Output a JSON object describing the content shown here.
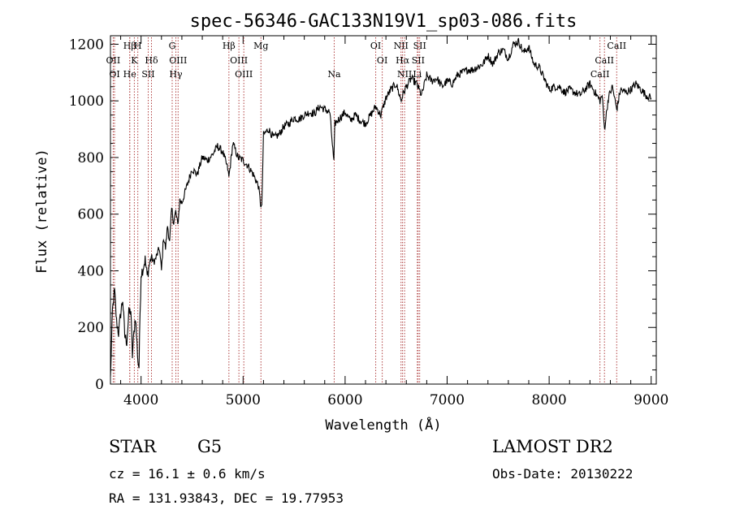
{
  "chart_data": {
    "type": "line",
    "title": "spec-56346-GAC133N19V1_sp03-086.fits",
    "xlabel": "Wavelength (Å)",
    "ylabel": "Flux (relative)",
    "xlim": [
      3700,
      9050
    ],
    "ylim": [
      0,
      1230
    ],
    "x_ticks": [
      4000,
      5000,
      6000,
      7000,
      8000,
      9000
    ],
    "y_ticks": [
      0,
      200,
      400,
      600,
      800,
      1000,
      1200
    ],
    "grid": false,
    "line_color": "#000000",
    "marker_color": "#b04040",
    "series": [
      {
        "x": [
          3700,
          3720,
          3740,
          3760,
          3780,
          3800,
          3820,
          3840,
          3860,
          3880,
          3900,
          3915,
          3930,
          3945,
          3960,
          3970,
          3980,
          3990,
          4000,
          4020,
          4040,
          4060,
          4080,
          4100,
          4120,
          4140,
          4160,
          4180,
          4200,
          4220,
          4240,
          4260,
          4280,
          4300,
          4320,
          4340,
          4360,
          4380,
          4400,
          4450,
          4500,
          4550,
          4600,
          4650,
          4700,
          4750,
          4800,
          4850,
          4861,
          4900,
          4950,
          5000,
          5050,
          5100,
          5150,
          5170,
          5183,
          5200,
          5250,
          5300,
          5350,
          5400,
          5450,
          5500,
          5550,
          5600,
          5650,
          5700,
          5750,
          5800,
          5850,
          5890,
          5900,
          5950,
          6000,
          6050,
          6100,
          6150,
          6200,
          6250,
          6300,
          6350,
          6400,
          6450,
          6500,
          6550,
          6563,
          6600,
          6650,
          6700,
          6750,
          6800,
          6850,
          6900,
          6950,
          7000,
          7050,
          7100,
          7150,
          7200,
          7250,
          7300,
          7350,
          7400,
          7450,
          7500,
          7550,
          7600,
          7650,
          7700,
          7750,
          7800,
          7850,
          7900,
          7950,
          8000,
          8050,
          8100,
          8150,
          8200,
          8250,
          8300,
          8350,
          8400,
          8450,
          8498,
          8520,
          8542,
          8580,
          8620,
          8662,
          8700,
          8750,
          8800,
          8850,
          8900,
          8950,
          9000
        ],
        "values": [
          20,
          260,
          330,
          220,
          180,
          250,
          300,
          170,
          150,
          250,
          260,
          100,
          180,
          240,
          140,
          80,
          60,
          250,
          390,
          410,
          440,
          380,
          420,
          450,
          430,
          440,
          460,
          480,
          400,
          520,
          480,
          560,
          500,
          620,
          570,
          610,
          560,
          650,
          640,
          700,
          760,
          740,
          800,
          790,
          810,
          840,
          820,
          760,
          730,
          850,
          800,
          790,
          770,
          740,
          700,
          640,
          620,
          880,
          900,
          870,
          880,
          910,
          920,
          940,
          935,
          950,
          960,
          955,
          980,
          970,
          960,
          780,
          920,
          940,
          960,
          930,
          950,
          930,
          920,
          950,
          980,
          950,
          1010,
          1040,
          1060,
          1000,
          1020,
          1050,
          1080,
          1060,
          1020,
          1090,
          1070,
          1080,
          1050,
          1070,
          1060,
          1090,
          1100,
          1110,
          1110,
          1120,
          1130,
          1160,
          1130,
          1170,
          1180,
          1150,
          1200,
          1210,
          1170,
          1190,
          1130,
          1120,
          1080,
          1040,
          1050,
          1050,
          1030,
          1040,
          1030,
          1020,
          1040,
          1060,
          1030,
          1000,
          1020,
          900,
          1010,
          1050,
          970,
          1040,
          1030,
          1040,
          1060,
          1040,
          1020,
          1010
        ]
      }
    ],
    "lines": [
      {
        "label": "Hβ",
        "wl": 3889,
        "row": 0
      },
      {
        "label": "OII",
        "wl": 3727,
        "row": 1
      },
      {
        "label": "OI",
        "wl": 3740,
        "row": 2
      },
      {
        "label": "He",
        "wl": 3889,
        "row": 2
      },
      {
        "label": "H",
        "wl": 3968,
        "row": 0
      },
      {
        "label": "K",
        "wl": 3934,
        "row": 1
      },
      {
        "label": "SII",
        "wl": 4070,
        "row": 2
      },
      {
        "label": "Hδ",
        "wl": 4102,
        "row": 1
      },
      {
        "label": "G",
        "wl": 4305,
        "row": 0
      },
      {
        "label": "OIII",
        "wl": 4363,
        "row": 1
      },
      {
        "label": "Hγ",
        "wl": 4341,
        "row": 2
      },
      {
        "label": "Hβ",
        "wl": 4861,
        "row": 0
      },
      {
        "label": "OIII",
        "wl": 4959,
        "row": 1
      },
      {
        "label": "OIII",
        "wl": 5007,
        "row": 2
      },
      {
        "label": "Mg",
        "wl": 5175,
        "row": 0
      },
      {
        "label": "Na",
        "wl": 5893,
        "row": 2
      },
      {
        "label": "OI",
        "wl": 6300,
        "row": 0
      },
      {
        "label": "OI",
        "wl": 6364,
        "row": 1
      },
      {
        "label": "NII",
        "wl": 6548,
        "row": 0
      },
      {
        "label": "SII",
        "wl": 6731,
        "row": 0
      },
      {
        "label": "Hα",
        "wl": 6563,
        "row": 1
      },
      {
        "label": "SII",
        "wl": 6716,
        "row": 1
      },
      {
        "label": "NII",
        "wl": 6583,
        "row": 2
      },
      {
        "label": "Li",
        "wl": 6708,
        "row": 2
      },
      {
        "label": "CaII",
        "wl": 8662,
        "row": 0
      },
      {
        "label": "CaII",
        "wl": 8542,
        "row": 1
      },
      {
        "label": "CaII",
        "wl": 8498,
        "row": 2
      }
    ]
  },
  "info": {
    "object_class": "STAR",
    "subclass": "G5",
    "survey": "LAMOST DR2",
    "redshift": "cz = 16.1 ± 0.6 km/s",
    "obs_date": "Obs-Date: 20130222",
    "coords": "RA = 131.93843, DEC =  19.77953"
  }
}
